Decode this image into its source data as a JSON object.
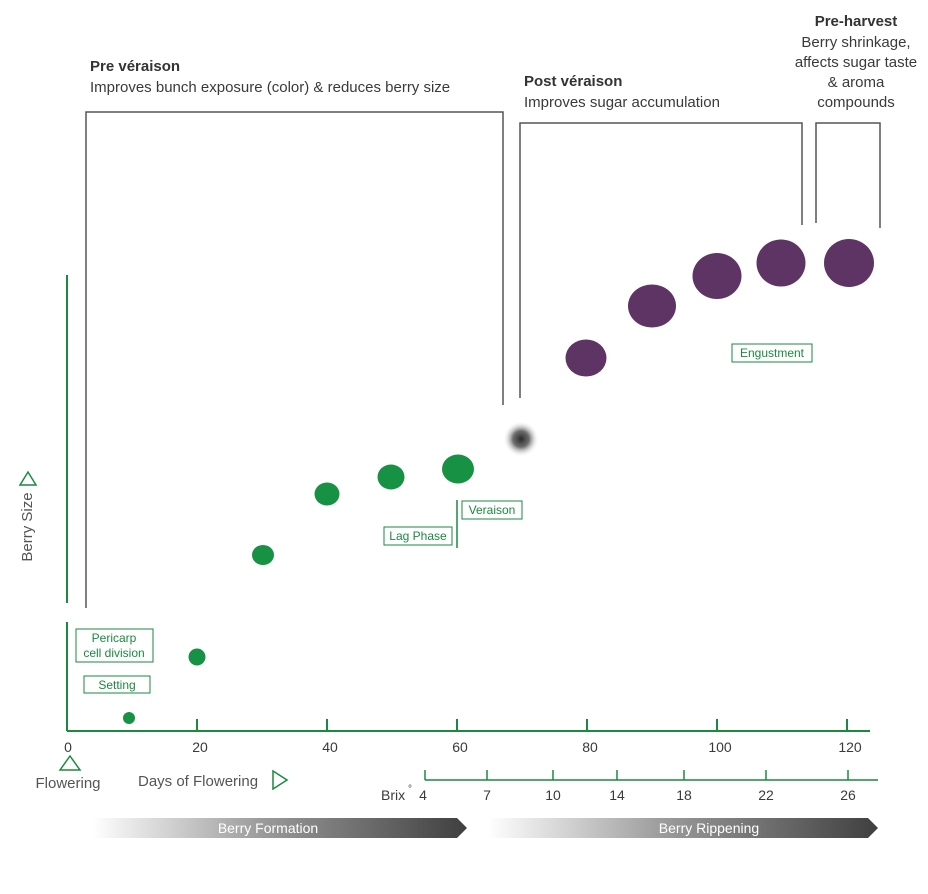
{
  "phases": {
    "pre_veraison": {
      "title": "Pre véraison",
      "description": "Improves bunch exposure (color) & reduces berry size"
    },
    "post_veraison": {
      "title": "Post véraison",
      "description": "Improves sugar accumulation"
    },
    "pre_harvest": {
      "title": "Pre-harvest",
      "description_lines": [
        "Berry shrinkage,",
        "affects sugar taste",
        "& aroma",
        "compounds"
      ]
    }
  },
  "axes": {
    "y_label": "Berry Size",
    "x_origin_label": "Flowering",
    "x_label": "Days of Flowering",
    "brix_label": "Brix",
    "brix_degree": "°"
  },
  "x_ticks": [
    "0",
    "20",
    "40",
    "60",
    "80",
    "100",
    "120"
  ],
  "brix_ticks": [
    "4",
    "7",
    "10",
    "14",
    "18",
    "22",
    "26"
  ],
  "stage_labels": {
    "pericarp": [
      "Pericarp",
      "cell division"
    ],
    "setting": "Setting",
    "lag_phase": "Lag Phase",
    "veraison": "Veraison",
    "engustment": "Engustment"
  },
  "bars": {
    "formation": "Berry Formation",
    "ripening": "Berry Rippening"
  },
  "colors": {
    "green_berry": "#179144",
    "purple_berry": "#5d3463",
    "axis_green": "#1a8a3f",
    "bracket_gray": "#555555"
  }
}
